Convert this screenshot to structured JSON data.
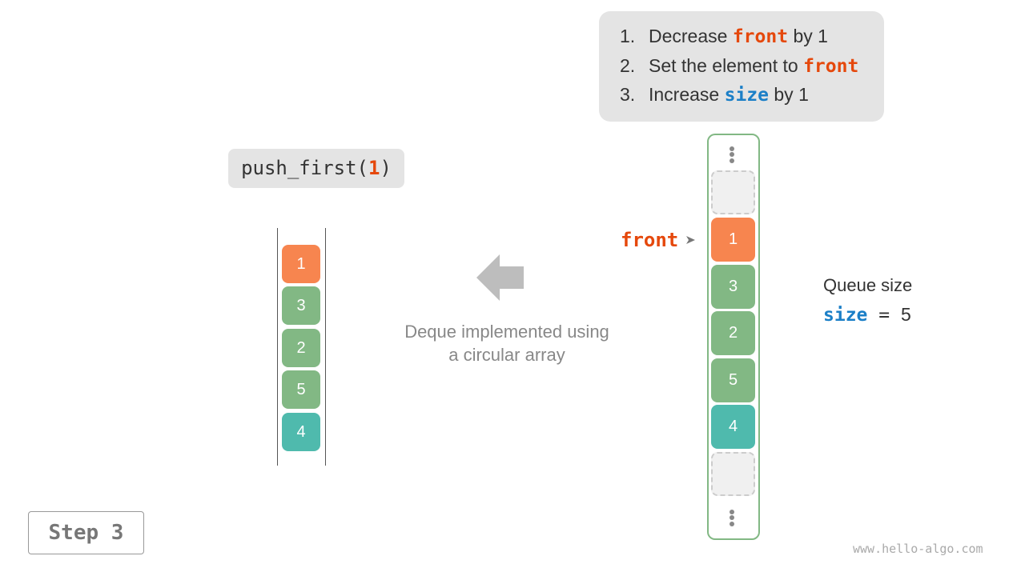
{
  "steps": [
    {
      "num": "1.",
      "pre": "Decrease ",
      "kw": "front",
      "post": " by 1"
    },
    {
      "num": "2.",
      "pre": "Set the element to ",
      "kw": "front",
      "post": ""
    },
    {
      "num": "3.",
      "pre": "Increase ",
      "kw": "size",
      "post": " by 1"
    }
  ],
  "operation": {
    "name": "push_first(",
    "arg": "1",
    "close": ")"
  },
  "deque_view": [
    "1",
    "3",
    "2",
    "5",
    "4"
  ],
  "array_view": {
    "cells": [
      "",
      "1",
      "3",
      "2",
      "5",
      "4",
      ""
    ],
    "pointer_label": "front"
  },
  "caption": {
    "line1": "Deque implemented using",
    "line2": "a circular array"
  },
  "size_info": {
    "label": "Queue size",
    "var": "size",
    "eq": " = ",
    "value": "5"
  },
  "step_label": "Step 3",
  "watermark": "www.hello-algo.com",
  "colors": {
    "new": "#f7854f",
    "normal": "#82b884",
    "last": "#4fbaad",
    "keyword_orange": "#e5480c",
    "keyword_blue": "#1b7fc7"
  }
}
